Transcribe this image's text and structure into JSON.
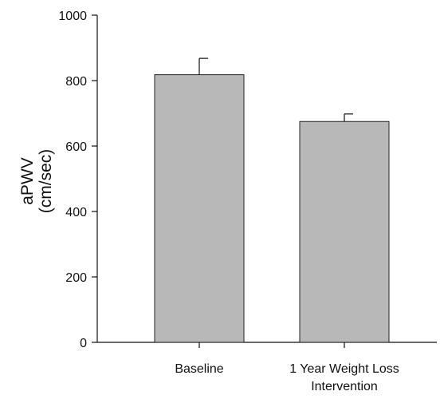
{
  "chart_data": {
    "type": "bar",
    "categories": [
      [
        "Baseline"
      ],
      [
        "1 Year Weight Loss",
        "Intervention"
      ]
    ],
    "values": [
      818,
      675
    ],
    "error_upper": [
      868,
      698
    ],
    "title": "",
    "xlabel": "",
    "ylabel_lines": [
      "aPWV",
      "(cm/sec)"
    ],
    "ylim": [
      0,
      1000
    ],
    "yticks": [
      0,
      200,
      400,
      600,
      800,
      1000
    ],
    "grid": false,
    "legend": "none",
    "colors": {
      "bar_fill": "#b8b8b8",
      "bar_stroke": "#222222",
      "axis": "#111111"
    }
  }
}
